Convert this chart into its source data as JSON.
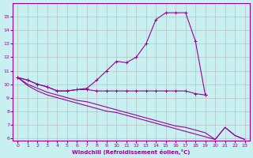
{
  "xlabel": "Windchill (Refroidissement éolien,°C)",
  "x": [
    0,
    1,
    2,
    3,
    4,
    5,
    6,
    7,
    8,
    9,
    10,
    11,
    12,
    13,
    14,
    15,
    16,
    17,
    18,
    19,
    20,
    21,
    22,
    23
  ],
  "series1": [
    10.5,
    10.3,
    10.0,
    9.8,
    9.5,
    9.5,
    9.6,
    9.7,
    10.3,
    11.0,
    11.7,
    11.6,
    12.0,
    13.0,
    14.8,
    15.3,
    15.3,
    15.3,
    13.2,
    9.2,
    null,
    null,
    null,
    null
  ],
  "series2": [
    10.5,
    10.3,
    10.0,
    9.8,
    9.5,
    9.5,
    9.6,
    9.6,
    9.5,
    9.5,
    9.5,
    9.5,
    9.5,
    9.5,
    9.5,
    9.5,
    9.5,
    9.5,
    9.3,
    9.2,
    null,
    null,
    null,
    null
  ],
  "series3": [
    10.5,
    10.0,
    9.7,
    9.4,
    9.2,
    9.0,
    8.8,
    8.7,
    8.5,
    8.3,
    8.1,
    7.9,
    7.7,
    7.5,
    7.3,
    7.1,
    6.9,
    6.8,
    6.6,
    6.4,
    5.9,
    6.8,
    6.2,
    5.9
  ],
  "series4": [
    10.5,
    9.9,
    9.5,
    9.2,
    9.0,
    8.8,
    8.6,
    8.4,
    8.2,
    8.0,
    7.9,
    7.7,
    7.5,
    7.3,
    7.1,
    6.9,
    6.7,
    6.5,
    6.3,
    6.1,
    5.9,
    6.8,
    6.2,
    5.9
  ],
  "color": "#990099",
  "background": "#c8f0f0",
  "grid_color": "#aaaaaa",
  "ylim": [
    5.8,
    16.0
  ],
  "xlim": [
    -0.5,
    23.5
  ],
  "yticks": [
    6,
    7,
    8,
    9,
    10,
    11,
    12,
    13,
    14,
    15
  ],
  "xticks": [
    0,
    1,
    2,
    3,
    4,
    5,
    6,
    7,
    8,
    9,
    10,
    11,
    12,
    13,
    14,
    15,
    16,
    17,
    18,
    19,
    20,
    21,
    22,
    23
  ]
}
